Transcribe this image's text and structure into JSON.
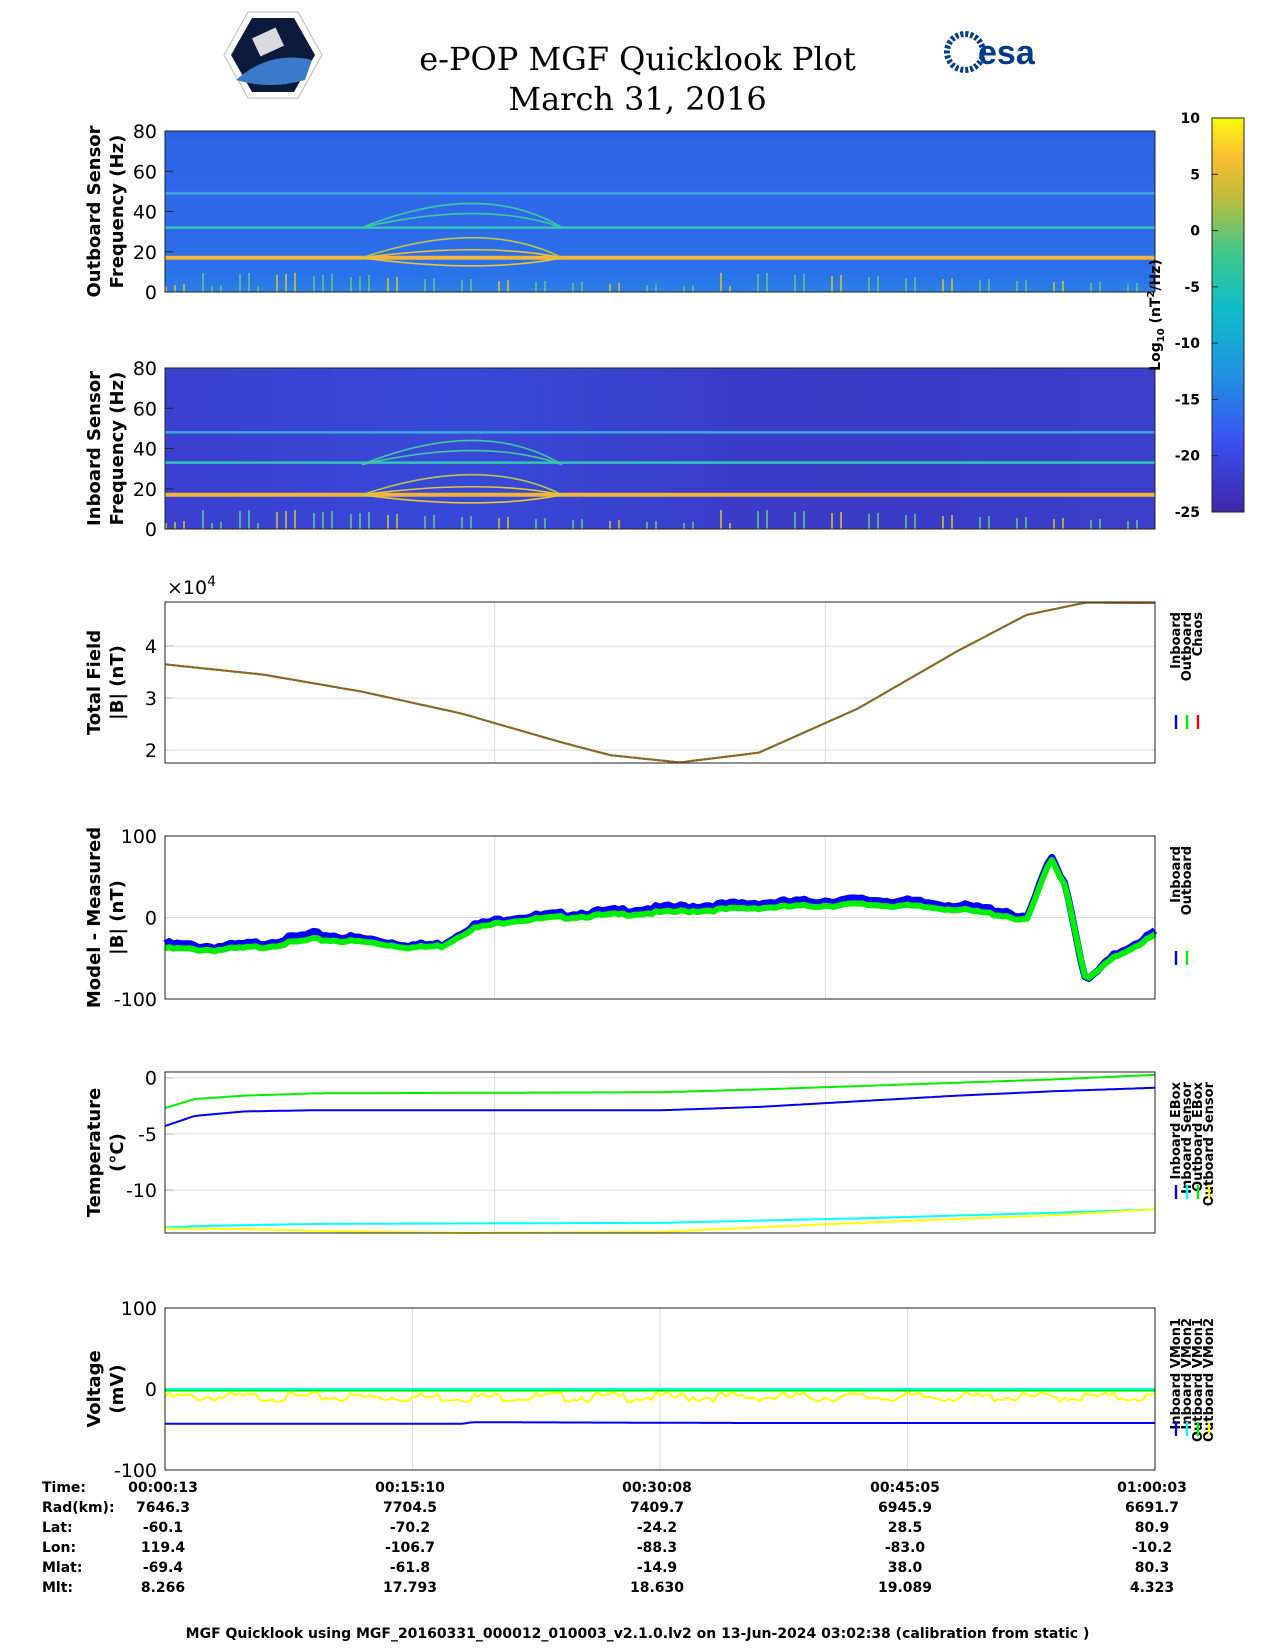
{
  "title": "e-POP MGF Quicklook Plot",
  "date": "March 31, 2016",
  "logos": {
    "left": "cassiope-mission-logo",
    "right_text": "esa"
  },
  "footer": "MGF Quicklook using MGF_20160331_000012_010003_v2.1.0.lv2 on 13-Jun-2024 03:02:38 (calibration from static )",
  "colors": {
    "blue": "#0000ff",
    "green": "#00ee00",
    "red": "#ff0000",
    "cyan": "#00ffff",
    "yellow": "#ffff00",
    "chaos_trace": "#b5511d"
  },
  "colorbar": {
    "label": "Log10 (nT2/Hz)",
    "ticks": [
      "10",
      "5",
      "0",
      "-5",
      "-10",
      "-15",
      "-20",
      "-25"
    ],
    "range": [
      -25,
      10
    ]
  },
  "chart_data": [
    {
      "type": "heatmap",
      "panel": "outboard-spectrogram",
      "ylabel_line1": "Outboard Sensor",
      "ylabel_line2": "Frequency (Hz)",
      "yticks": [
        "80",
        "60",
        "40",
        "20",
        "0"
      ],
      "ylim": [
        0,
        80
      ],
      "description_lines": [
        {
          "freq_hz": 17,
          "level": "high"
        },
        {
          "freq_hz": 32,
          "level": "medium"
        },
        {
          "freq_hz": 49,
          "level": "low"
        }
      ]
    },
    {
      "type": "heatmap",
      "panel": "inboard-spectrogram",
      "ylabel_line1": "Inboard Sensor",
      "ylabel_line2": "Frequency (Hz)",
      "yticks": [
        "80",
        "60",
        "40",
        "20",
        "0"
      ],
      "ylim": [
        0,
        80
      ],
      "description_lines": [
        {
          "freq_hz": 17,
          "level": "high"
        },
        {
          "freq_hz": 33,
          "level": "medium"
        },
        {
          "freq_hz": 48,
          "level": "low"
        }
      ]
    },
    {
      "type": "line",
      "panel": "total-field",
      "ylabel_line1": "Total Field",
      "ylabel_line2": "|B| (nT)",
      "exponent_label": "×10",
      "exponent_power": "4",
      "yticks": [
        "4",
        "3",
        "2"
      ],
      "ylim": [
        1.75,
        4.85
      ],
      "x": [
        0,
        0.1,
        0.2,
        0.3,
        0.4,
        0.45,
        0.52,
        0.6,
        0.7,
        0.8,
        0.87,
        0.93,
        1.0
      ],
      "series": [
        {
          "name": "Inboard",
          "values": [
            3.65,
            3.45,
            3.12,
            2.7,
            2.15,
            1.9,
            1.76,
            1.95,
            2.8,
            3.9,
            4.6,
            4.84,
            4.83
          ]
        },
        {
          "name": "Outboard",
          "values": [
            3.65,
            3.45,
            3.12,
            2.7,
            2.15,
            1.9,
            1.76,
            1.95,
            2.8,
            3.9,
            4.6,
            4.84,
            4.83
          ]
        },
        {
          "name": "Chaos",
          "values": [
            3.65,
            3.45,
            3.12,
            2.7,
            2.15,
            1.9,
            1.76,
            1.95,
            2.8,
            3.9,
            4.6,
            4.84,
            4.83
          ]
        }
      ]
    },
    {
      "type": "line",
      "panel": "model-minus-measured",
      "ylabel_line1": "Model - Measured",
      "ylabel_line2": "|B| (nT)",
      "yticks": [
        "100",
        "0",
        "-100"
      ],
      "ylim": [
        -100,
        100
      ],
      "x": [
        0,
        0.05,
        0.1,
        0.15,
        0.2,
        0.25,
        0.28,
        0.31,
        0.35,
        0.4,
        0.5,
        0.6,
        0.7,
        0.75,
        0.8,
        0.85,
        0.87,
        0.895,
        0.91,
        0.93,
        0.96,
        1.0
      ],
      "series": [
        {
          "name": "Inboard",
          "values": [
            -32,
            -36,
            -31,
            -20,
            -26,
            -34,
            -33,
            -10,
            0,
            4,
            12,
            18,
            22,
            20,
            15,
            8,
            -3,
            75,
            40,
            -80,
            -45,
            -18
          ]
        },
        {
          "name": "Outboard",
          "values": [
            -38,
            -40,
            -36,
            -27,
            -30,
            -37,
            -35,
            -14,
            -4,
            0,
            6,
            12,
            16,
            14,
            10,
            2,
            -5,
            72,
            38,
            -78,
            -48,
            -22
          ]
        }
      ]
    },
    {
      "type": "line",
      "panel": "temperature",
      "ylabel_line1": "Temperature",
      "ylabel_line2": "(°C)",
      "yticks": [
        "0",
        "-5",
        "-10"
      ],
      "ylim": [
        -13.8,
        0.5
      ],
      "x": [
        0,
        0.03,
        0.08,
        0.15,
        0.3,
        0.5,
        0.6,
        0.7,
        0.8,
        0.9,
        1.0
      ],
      "series": [
        {
          "name": "Inboard EBox",
          "values": [
            -4.3,
            -3.4,
            -3.0,
            -2.9,
            -2.9,
            -2.9,
            -2.6,
            -2.1,
            -1.6,
            -1.2,
            -0.9
          ]
        },
        {
          "name": "Inboard Sensor",
          "values": [
            -13.3,
            -13.2,
            -13.1,
            -13.0,
            -12.95,
            -12.9,
            -12.7,
            -12.5,
            -12.25,
            -12.0,
            -11.7
          ]
        },
        {
          "name": "Outboard EBox",
          "values": [
            -2.7,
            -1.9,
            -1.6,
            -1.4,
            -1.35,
            -1.3,
            -1.05,
            -0.75,
            -0.45,
            -0.15,
            0.25
          ]
        },
        {
          "name": "Outboard Sensor",
          "values": [
            -13.4,
            -13.4,
            -13.45,
            -13.6,
            -13.8,
            -13.7,
            -13.3,
            -12.9,
            -12.55,
            -12.2,
            -11.7
          ]
        }
      ]
    },
    {
      "type": "line",
      "panel": "voltage",
      "ylabel_line1": "Voltage",
      "ylabel_line2": "(mV)",
      "yticks": [
        "100",
        "0",
        "-100"
      ],
      "ylim": [
        -100,
        100
      ],
      "x": [
        0,
        0.3,
        0.31,
        0.6,
        1.0
      ],
      "series": [
        {
          "name": "Inboard VMon1",
          "values": [
            -43,
            -43,
            -41,
            -42,
            -42
          ]
        },
        {
          "name": "Inboard VMon2",
          "values": [
            0,
            0,
            0,
            0,
            0
          ]
        },
        {
          "name": "Outboard VMon1",
          "values": [
            -2,
            -2,
            -2,
            -2,
            -2
          ]
        },
        {
          "name": "Outboard VMon2",
          "values": [
            -10,
            -10,
            -10,
            -10,
            -10
          ]
        }
      ]
    }
  ],
  "ephemeris": {
    "labels": [
      "Time:",
      "Rad(km):",
      "Lat:",
      "Lon:",
      "Mlat:",
      "Mlt:"
    ],
    "columns": [
      [
        "00:00:13",
        "7646.3",
        "-60.1",
        "119.4",
        "-69.4",
        "8.266"
      ],
      [
        "00:15:10",
        "7704.5",
        "-70.2",
        "-106.7",
        "-61.8",
        "17.793"
      ],
      [
        "00:30:08",
        "7409.7",
        "-24.2",
        "-88.3",
        "-14.9",
        "18.630"
      ],
      [
        "00:45:05",
        "6945.9",
        "28.5",
        "-83.0",
        "38.0",
        "19.089"
      ],
      [
        "01:00:03",
        "6691.7",
        "80.9",
        "-10.2",
        "80.3",
        "4.323"
      ]
    ]
  }
}
